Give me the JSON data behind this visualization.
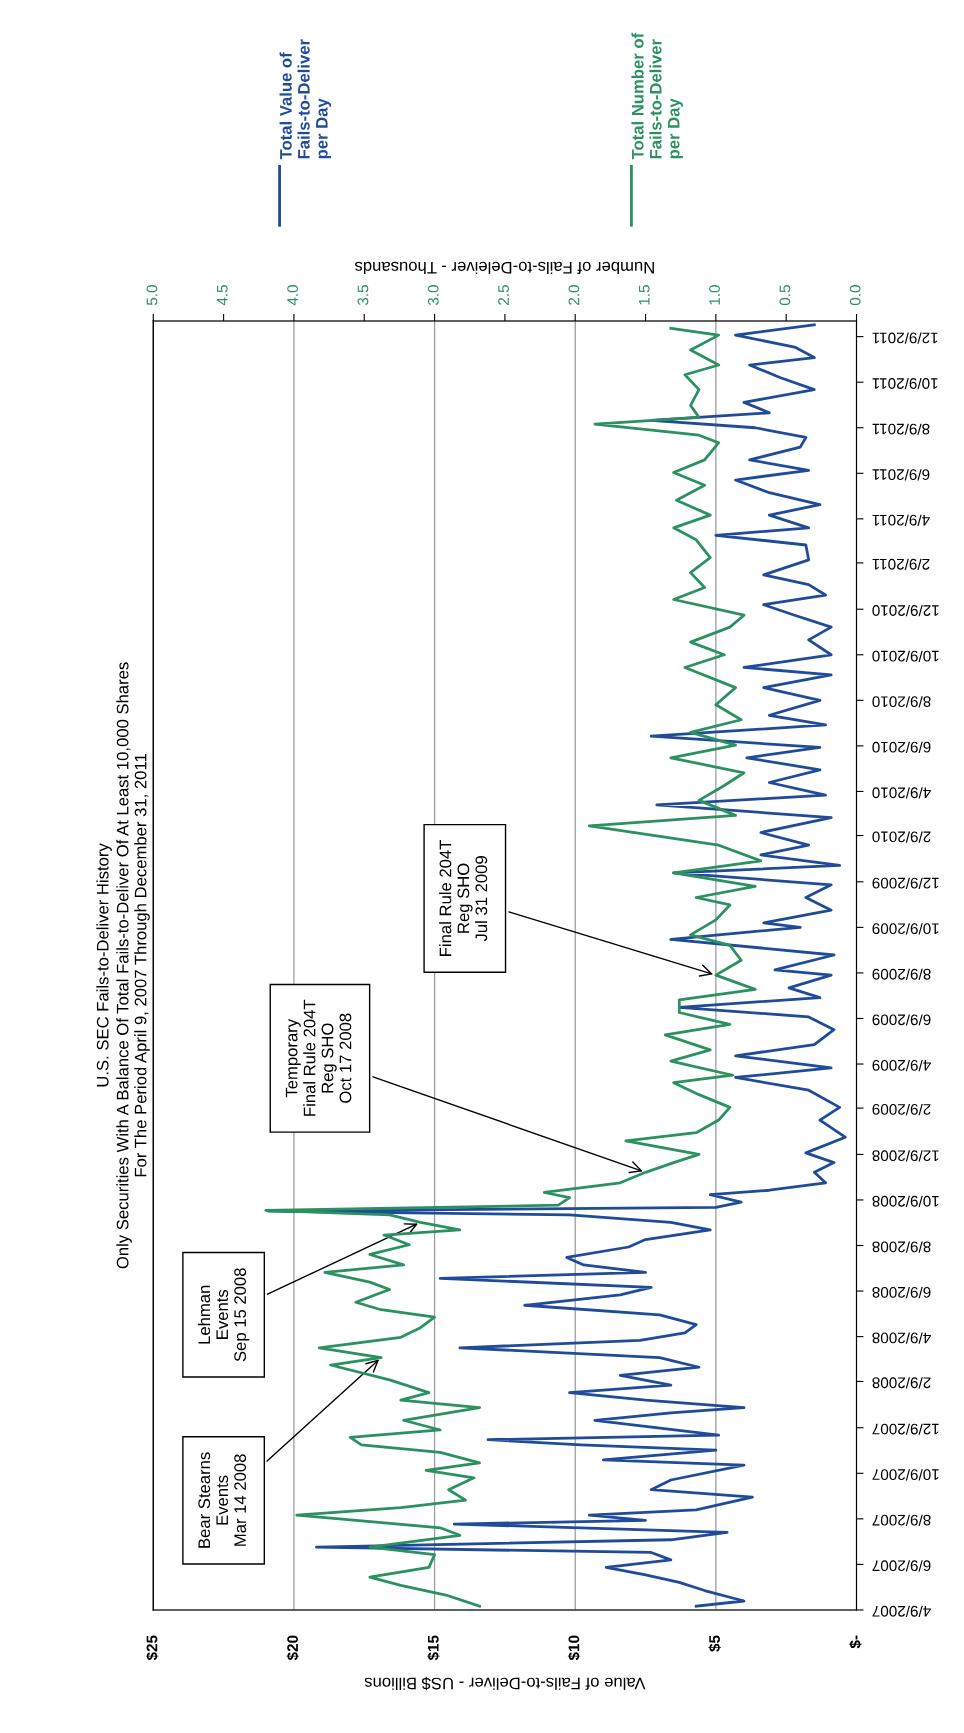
{
  "chart_data": {
    "type": "line",
    "title": "U.S. SEC Fails-to-Deliver History",
    "subtitle": "Only Securities With A Balance Of Total Fails-to-Deliver Of At Least 10,000 Shares\nFor The Period April 9, 2007 Through December 31, 2011",
    "orientation": "horizontal",
    "xlabel": "Value of Fails-to-Deliver - US$ Billions",
    "x2label": "Number of Fails-to-Deleiver - Thousands",
    "annotations": [
      {
        "text": "Bear Stearns\nEvents\nMar 14 2008",
        "x": 16.9,
        "y": "2008-03-12"
      },
      {
        "text": "Lehman\nEvents\nSep 15 2008",
        "x": 15.5,
        "y": "2008-09-09"
      },
      {
        "text": "Temporary\nFinal Rule 204T\nReg SHO\nOct 17 2008",
        "x": 7.5,
        "y": "2008-11-15"
      },
      {
        "text": "Final Rule 204T\nReg SHO\nJul 31 2009",
        "x": 5.0,
        "y": "2009-08-06"
      }
    ],
    "series": [
      {
        "name": "Total Value of Fails-to-Deliver per Day",
        "color": "#1f4b9a",
        "x": [
          "2007-04-14",
          "2007-04-21",
          "2007-05-05",
          "2007-05-16",
          "2007-05-26",
          "2007-06-05",
          "2007-06-15",
          "2007-06-25",
          "2007-07-02",
          "2007-07-12",
          "2007-07-22",
          "2007-08-02",
          "2007-08-07",
          "2007-08-14",
          "2007-08-21",
          "2007-09-07",
          "2007-09-17",
          "2007-09-30",
          "2007-10-20",
          "2007-10-27",
          "2007-11-09",
          "2007-11-16",
          "2007-11-23",
          "2007-11-29",
          "2007-12-19",
          "2007-12-29",
          "2008-01-05",
          "2008-01-15",
          "2008-01-25",
          "2008-02-04",
          "2008-02-17",
          "2008-02-28",
          "2008-03-12",
          "2008-03-25",
          "2008-04-04",
          "2008-04-14",
          "2008-04-25",
          "2008-05-08",
          "2008-05-21",
          "2008-06-04",
          "2008-06-14",
          "2008-06-26",
          "2008-07-04",
          "2008-07-14",
          "2008-07-24",
          "2008-08-07",
          "2008-08-17",
          "2008-08-30",
          "2008-09-09",
          "2008-09-19",
          "2008-09-24",
          "2008-09-29",
          "2008-10-06",
          "2008-10-16",
          "2008-10-22",
          "2008-11-01",
          "2008-11-15",
          "2008-11-28",
          "2008-12-11",
          "2009-01-01",
          "2009-01-24",
          "2009-02-10",
          "2009-03-05",
          "2009-03-22",
          "2009-04-04",
          "2009-04-20",
          "2009-05-05",
          "2009-05-25",
          "2009-06-11",
          "2009-06-24",
          "2009-07-07",
          "2009-07-20",
          "2009-08-06",
          "2009-08-13",
          "2009-09-02",
          "2009-09-23",
          "2009-10-09",
          "2009-10-15",
          "2009-11-01",
          "2009-11-18",
          "2009-12-05",
          "2009-12-21",
          "2009-12-31",
          "2010-01-14",
          "2010-01-27",
          "2010-02-13",
          "2010-03-05",
          "2010-03-22",
          "2010-04-04",
          "2010-04-21",
          "2010-05-08",
          "2010-05-24",
          "2010-06-07",
          "2010-06-22",
          "2010-07-07",
          "2010-07-20",
          "2010-08-09",
          "2010-08-26",
          "2010-09-12",
          "2010-09-22",
          "2010-10-09",
          "2010-10-29",
          "2010-11-15",
          "2010-12-01",
          "2010-12-15",
          "2010-12-28",
          "2011-01-11",
          "2011-01-24",
          "2011-02-13",
          "2011-03-05",
          "2011-03-18",
          "2011-03-28",
          "2011-04-14",
          "2011-04-28",
          "2011-05-14",
          "2011-05-31",
          "2011-06-13",
          "2011-06-27",
          "2011-07-14",
          "2011-07-27",
          "2011-08-09",
          "2011-08-19",
          "2011-08-29",
          "2011-09-12",
          "2011-09-29",
          "2011-10-15",
          "2011-11-01",
          "2011-11-11",
          "2011-11-25",
          "2011-12-11",
          "2011-12-25"
        ],
        "values": [
          5.7,
          4.0,
          5.4,
          6.3,
          7.5,
          8.9,
          6.6,
          7.3,
          19.2,
          6.6,
          4.6,
          14.3,
          7.5,
          9.5,
          5.7,
          3.7,
          7.3,
          6.6,
          4.0,
          9.0,
          5.0,
          9.8,
          13.1,
          4.9,
          9.3,
          6.6,
          4.0,
          7.5,
          10.2,
          6.6,
          8.4,
          5.6,
          7.0,
          14.1,
          7.7,
          6.1,
          5.7,
          7.0,
          11.8,
          8.4,
          7.3,
          14.8,
          7.5,
          9.7,
          10.3,
          8.1,
          7.5,
          5.2,
          6.6,
          10.2,
          20.9,
          5.0,
          4.1,
          5.2,
          3.1,
          1.1,
          1.5,
          0.8,
          1.8,
          0.4,
          1.3,
          0.6,
          1.7,
          4.3,
          0.9,
          4.3,
          1.5,
          0.8,
          1.7,
          6.3,
          1.3,
          2.4,
          0.9,
          2.9,
          0.8,
          6.6,
          2.0,
          3.3,
          0.9,
          1.8,
          0.9,
          6.5,
          0.6,
          3.4,
          1.7,
          3.4,
          0.9,
          7.1,
          1.1,
          3.1,
          1.3,
          3.9,
          1.3,
          7.3,
          1.1,
          3.1,
          1.3,
          3.3,
          0.9,
          4.0,
          0.9,
          1.7,
          0.9,
          2.2,
          3.3,
          1.1,
          1.7,
          3.3,
          1.7,
          1.8,
          5.0,
          1.7,
          3.1,
          1.3,
          3.1,
          4.3,
          1.7,
          3.8,
          2.0,
          1.8,
          3.6,
          7.3,
          3.1,
          4.0,
          1.5,
          2.7,
          3.8,
          1.5,
          2.2,
          4.3,
          1.5
        ]
      },
      {
        "name": "Total Number of Fails-to-Deliver per Day",
        "color": "#2b9160",
        "axis": "x2",
        "x": [
          "2007-04-14",
          "2007-04-29",
          "2007-05-12",
          "2007-05-23",
          "2007-06-05",
          "2007-06-22",
          "2007-07-02",
          "2007-07-18",
          "2007-07-28",
          "2007-08-14",
          "2007-08-24",
          "2007-09-03",
          "2007-09-17",
          "2007-10-03",
          "2007-10-13",
          "2007-10-23",
          "2007-11-06",
          "2007-11-16",
          "2007-11-26",
          "2007-12-06",
          "2007-12-19",
          "2008-01-05",
          "2008-01-15",
          "2008-01-25",
          "2008-02-11",
          "2008-03-02",
          "2008-03-12",
          "2008-03-25",
          "2008-04-08",
          "2008-04-21",
          "2008-05-05",
          "2008-05-15",
          "2008-05-25",
          "2008-06-11",
          "2008-06-21",
          "2008-07-04",
          "2008-07-14",
          "2008-07-28",
          "2008-08-10",
          "2008-08-23",
          "2008-08-30",
          "2008-09-09",
          "2008-09-19",
          "2008-09-25",
          "2008-10-02",
          "2008-10-12",
          "2008-10-19",
          "2008-11-01",
          "2008-11-15",
          "2008-11-28",
          "2008-12-09",
          "2008-12-27",
          "2009-01-07",
          "2009-01-24",
          "2009-02-10",
          "2009-02-27",
          "2009-03-15",
          "2009-03-25",
          "2009-04-13",
          "2009-04-28",
          "2009-05-18",
          "2009-06-01",
          "2009-06-17",
          "2009-07-04",
          "2009-07-18",
          "2009-08-06",
          "2009-08-26",
          "2009-09-15",
          "2009-09-29",
          "2009-10-19",
          "2009-11-08",
          "2009-11-18",
          "2009-12-03",
          "2009-12-21",
          "2010-01-06",
          "2010-01-27",
          "2010-02-22",
          "2010-03-08",
          "2010-03-28",
          "2010-04-17",
          "2010-05-04",
          "2010-05-24",
          "2010-06-10",
          "2010-06-27",
          "2010-07-14",
          "2010-08-03",
          "2010-08-26",
          "2010-09-22",
          "2010-10-09",
          "2010-10-26",
          "2010-11-15",
          "2010-12-01",
          "2010-12-22",
          "2011-01-07",
          "2011-01-27",
          "2011-02-16",
          "2011-03-12",
          "2011-03-28",
          "2011-04-14",
          "2011-05-04",
          "2011-05-24",
          "2011-06-10",
          "2011-06-27",
          "2011-07-20",
          "2011-07-30",
          "2011-08-14",
          "2011-08-23",
          "2011-09-08",
          "2011-09-29",
          "2011-10-19",
          "2011-11-01",
          "2011-11-21",
          "2011-12-11",
          "2011-12-20"
        ],
        "values": [
          2.68,
          2.92,
          3.24,
          3.46,
          3.04,
          3.0,
          3.46,
          2.82,
          2.96,
          3.98,
          3.24,
          2.78,
          2.9,
          2.72,
          3.06,
          2.68,
          2.96,
          3.52,
          3.6,
          2.96,
          3.22,
          2.68,
          3.24,
          3.04,
          3.32,
          3.74,
          3.38,
          3.82,
          3.24,
          3.1,
          3.0,
          3.38,
          3.56,
          3.32,
          3.46,
          3.78,
          3.22,
          3.46,
          3.18,
          3.36,
          2.82,
          3.1,
          3.32,
          4.2,
          2.12,
          2.04,
          2.22,
          1.68,
          1.5,
          1.3,
          1.12,
          1.64,
          1.14,
          0.98,
          0.9,
          1.12,
          1.3,
          0.88,
          1.32,
          1.04,
          1.36,
          0.9,
          1.26,
          1.26,
          0.72,
          1.0,
          0.82,
          0.9,
          1.18,
          1.0,
          0.9,
          1.14,
          0.72,
          1.3,
          0.68,
          0.98,
          1.9,
          0.86,
          1.12,
          0.94,
          0.8,
          1.32,
          0.86,
          1.18,
          0.82,
          1.0,
          0.86,
          1.22,
          0.94,
          1.18,
          0.9,
          0.8,
          1.3,
          1.08,
          1.18,
          1.04,
          1.14,
          1.3,
          1.04,
          1.28,
          1.08,
          1.3,
          1.08,
          0.98,
          1.12,
          1.86,
          1.12,
          1.18,
          1.12,
          1.22,
          0.98,
          1.18,
          0.98,
          1.32
        ]
      }
    ],
    "ylim": [
      "2007-04-09",
      "2011-12-30"
    ],
    "yticks": [
      {
        "value": "2007-04-09",
        "label": "4/9/2007"
      },
      {
        "value": "2007-06-09",
        "label": "6/9/2007"
      },
      {
        "value": "2007-08-09",
        "label": "8/9/2007"
      },
      {
        "value": "2007-10-09",
        "label": "10/9/2007"
      },
      {
        "value": "2007-12-09",
        "label": "12/9/2007"
      },
      {
        "value": "2008-02-09",
        "label": "2/9/2008"
      },
      {
        "value": "2008-04-09",
        "label": "4/9/2008"
      },
      {
        "value": "2008-06-09",
        "label": "6/9/2008"
      },
      {
        "value": "2008-08-09",
        "label": "8/9/2008"
      },
      {
        "value": "2008-10-09",
        "label": "10/9/2008"
      },
      {
        "value": "2008-12-09",
        "label": "12/9/2008"
      },
      {
        "value": "2009-02-09",
        "label": "2/9/2009"
      },
      {
        "value": "2009-04-09",
        "label": "4/9/2009"
      },
      {
        "value": "2009-06-09",
        "label": "6/9/2009"
      },
      {
        "value": "2009-08-09",
        "label": "8/9/2009"
      },
      {
        "value": "2009-10-09",
        "label": "10/9/2009"
      },
      {
        "value": "2009-12-09",
        "label": "12/9/2009"
      },
      {
        "value": "2010-02-09",
        "label": "2/9/2010"
      },
      {
        "value": "2010-04-09",
        "label": "4/9/2010"
      },
      {
        "value": "2010-06-09",
        "label": "6/9/2010"
      },
      {
        "value": "2010-08-09",
        "label": "8/9/2010"
      },
      {
        "value": "2010-10-09",
        "label": "10/9/2010"
      },
      {
        "value": "2010-12-09",
        "label": "12/9/2010"
      },
      {
        "value": "2011-02-09",
        "label": "2/9/2011"
      },
      {
        "value": "2011-04-09",
        "label": "4/9/2011"
      },
      {
        "value": "2011-06-09",
        "label": "6/9/2011"
      },
      {
        "value": "2011-08-09",
        "label": "8/9/2011"
      },
      {
        "value": "2011-10-09",
        "label": "10/9/2011"
      },
      {
        "value": "2011-12-09",
        "label": "12/9/2011"
      }
    ],
    "xlim": [
      25,
      0
    ],
    "xticks": [
      {
        "value": 0,
        "label": "$-"
      },
      {
        "value": 5,
        "label": "$5"
      },
      {
        "value": 10,
        "label": "$10"
      },
      {
        "value": 15,
        "label": "$15"
      },
      {
        "value": 20,
        "label": "$20"
      },
      {
        "value": 25,
        "label": "$25"
      }
    ],
    "x2lim": [
      5,
      0
    ],
    "x2ticks": [
      {
        "value": 0,
        "label": "0.0"
      },
      {
        "value": 0.5,
        "label": "0.5"
      },
      {
        "value": 1,
        "label": "1.0"
      },
      {
        "value": 1.5,
        "label": "1.5"
      },
      {
        "value": 2,
        "label": "2.0"
      },
      {
        "value": 2.5,
        "label": "2.5"
      },
      {
        "value": 3,
        "label": "3.0"
      },
      {
        "value": 3.5,
        "label": "3.5"
      },
      {
        "value": 4,
        "label": "4.0"
      },
      {
        "value": 4.5,
        "label": "4.5"
      },
      {
        "value": 5,
        "label": "5.0"
      }
    ],
    "grid": "x",
    "legend": "right"
  }
}
